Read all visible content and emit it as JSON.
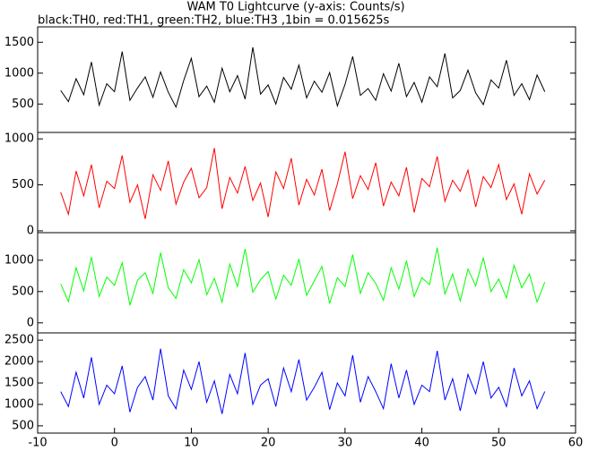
{
  "chart_data": [
    {
      "type": "line",
      "title": "WAM T0 Lightcurve (y-axis: Counts/s)",
      "subtitle": "black:TH0, red:TH1, green:TH2, blue:TH3 ,1bin = 0.015625s",
      "color": "#000000",
      "x": [
        -7,
        -6,
        -5,
        -4,
        -3,
        -2,
        -1,
        0,
        1,
        2,
        3,
        4,
        5,
        6,
        7,
        8,
        9,
        10,
        11,
        12,
        13,
        14,
        15,
        16,
        17,
        18,
        19,
        20,
        21,
        22,
        23,
        24,
        25,
        26,
        27,
        28,
        29,
        30,
        31,
        32,
        33,
        34,
        35,
        36,
        37,
        38,
        39,
        40,
        41,
        42,
        43,
        44,
        45,
        46,
        47,
        48,
        49,
        50,
        51,
        52,
        53,
        54,
        55,
        56
      ],
      "values": [
        720,
        540,
        910,
        650,
        1180,
        480,
        830,
        700,
        1350,
        560,
        760,
        940,
        610,
        1020,
        690,
        450,
        880,
        1240,
        620,
        790,
        530,
        1080,
        700,
        960,
        580,
        1420,
        660,
        810,
        500,
        930,
        740,
        1130,
        600,
        870,
        690,
        1010,
        470,
        820,
        1270,
        640,
        750,
        560,
        990,
        710,
        1160,
        620,
        850,
        530,
        940,
        780,
        1320,
        600,
        720,
        1050,
        680,
        490,
        890,
        760,
        1210,
        640,
        830,
        570,
        970,
        700
      ],
      "xlim": [
        -10,
        60
      ],
      "ylim": [
        40,
        1750
      ],
      "yticks": [
        500,
        1000,
        1500
      ]
    },
    {
      "type": "line",
      "color": "#ff0000",
      "x": [
        -7,
        -6,
        -5,
        -4,
        -3,
        -2,
        -1,
        0,
        1,
        2,
        3,
        4,
        5,
        6,
        7,
        8,
        9,
        10,
        11,
        12,
        13,
        14,
        15,
        16,
        17,
        18,
        19,
        20,
        21,
        22,
        23,
        24,
        25,
        26,
        27,
        28,
        29,
        30,
        31,
        32,
        33,
        34,
        35,
        36,
        37,
        38,
        39,
        40,
        41,
        42,
        43,
        44,
        45,
        46,
        47,
        48,
        49,
        50,
        51,
        52,
        53,
        54,
        55,
        56
      ],
      "values": [
        420,
        180,
        650,
        380,
        720,
        250,
        540,
        460,
        820,
        310,
        500,
        130,
        610,
        440,
        760,
        290,
        530,
        680,
        360,
        470,
        900,
        240,
        580,
        410,
        700,
        330,
        520,
        150,
        640,
        460,
        790,
        280,
        560,
        390,
        670,
        220,
        510,
        860,
        350,
        600,
        450,
        740,
        270,
        530,
        380,
        690,
        200,
        570,
        480,
        810,
        320,
        550,
        430,
        660,
        260,
        590,
        470,
        720,
        340,
        510,
        180,
        620,
        400,
        550
      ],
      "xlim": [
        -10,
        60
      ],
      "ylim": [
        -20,
        1070
      ],
      "yticks": [
        0,
        500,
        1000
      ]
    },
    {
      "type": "line",
      "color": "#00ff00",
      "x": [
        -7,
        -6,
        -5,
        -4,
        -3,
        -2,
        -1,
        0,
        1,
        2,
        3,
        4,
        5,
        6,
        7,
        8,
        9,
        10,
        11,
        12,
        13,
        14,
        15,
        16,
        17,
        18,
        19,
        20,
        21,
        22,
        23,
        24,
        25,
        26,
        27,
        28,
        29,
        30,
        31,
        32,
        33,
        34,
        35,
        36,
        37,
        38,
        39,
        40,
        41,
        42,
        43,
        44,
        45,
        46,
        47,
        48,
        49,
        50,
        51,
        52,
        53,
        54,
        55,
        56
      ],
      "values": [
        620,
        340,
        880,
        510,
        1050,
        420,
        730,
        600,
        960,
        280,
        680,
        800,
        470,
        1120,
        560,
        390,
        850,
        640,
        1010,
        450,
        710,
        330,
        940,
        580,
        1180,
        490,
        690,
        820,
        380,
        760,
        600,
        1020,
        440,
        670,
        900,
        310,
        720,
        580,
        1090,
        470,
        800,
        630,
        360,
        880,
        540,
        990,
        420,
        720,
        610,
        1200,
        460,
        780,
        350,
        860,
        590,
        1040,
        500,
        700,
        400,
        920,
        560,
        780,
        330,
        650
      ],
      "xlim": [
        -10,
        60
      ],
      "ylim": [
        -160,
        1440
      ],
      "yticks": [
        0,
        500,
        1000
      ]
    },
    {
      "type": "line",
      "color": "#0000ff",
      "x": [
        -7,
        -6,
        -5,
        -4,
        -3,
        -2,
        -1,
        0,
        1,
        2,
        3,
        4,
        5,
        6,
        7,
        8,
        9,
        10,
        11,
        12,
        13,
        14,
        15,
        16,
        17,
        18,
        19,
        20,
        21,
        22,
        23,
        24,
        25,
        26,
        27,
        28,
        29,
        30,
        31,
        32,
        33,
        34,
        35,
        36,
        37,
        38,
        39,
        40,
        41,
        42,
        43,
        44,
        45,
        46,
        47,
        48,
        49,
        50,
        51,
        52,
        53,
        54,
        55,
        56
      ],
      "values": [
        1300,
        950,
        1750,
        1150,
        2100,
        1000,
        1450,
        1250,
        1900,
        820,
        1400,
        1650,
        1100,
        2300,
        1200,
        900,
        1800,
        1350,
        2000,
        1050,
        1550,
        780,
        1700,
        1250,
        2200,
        1000,
        1450,
        1600,
        950,
        1850,
        1300,
        2050,
        1100,
        1400,
        1750,
        880,
        1500,
        1200,
        2150,
        1050,
        1650,
        1300,
        900,
        1950,
        1150,
        1800,
        1000,
        1450,
        1300,
        2250,
        1100,
        1600,
        850,
        1700,
        1250,
        2000,
        1150,
        1400,
        950,
        1850,
        1200,
        1550,
        900,
        1300
      ],
      "xlim": [
        -10,
        60
      ],
      "ylim": [
        330,
        2670
      ],
      "yticks": [
        500,
        1000,
        1500,
        2000,
        2500
      ],
      "xticks": [
        -10,
        0,
        10,
        20,
        30,
        40,
        50,
        60
      ]
    }
  ]
}
